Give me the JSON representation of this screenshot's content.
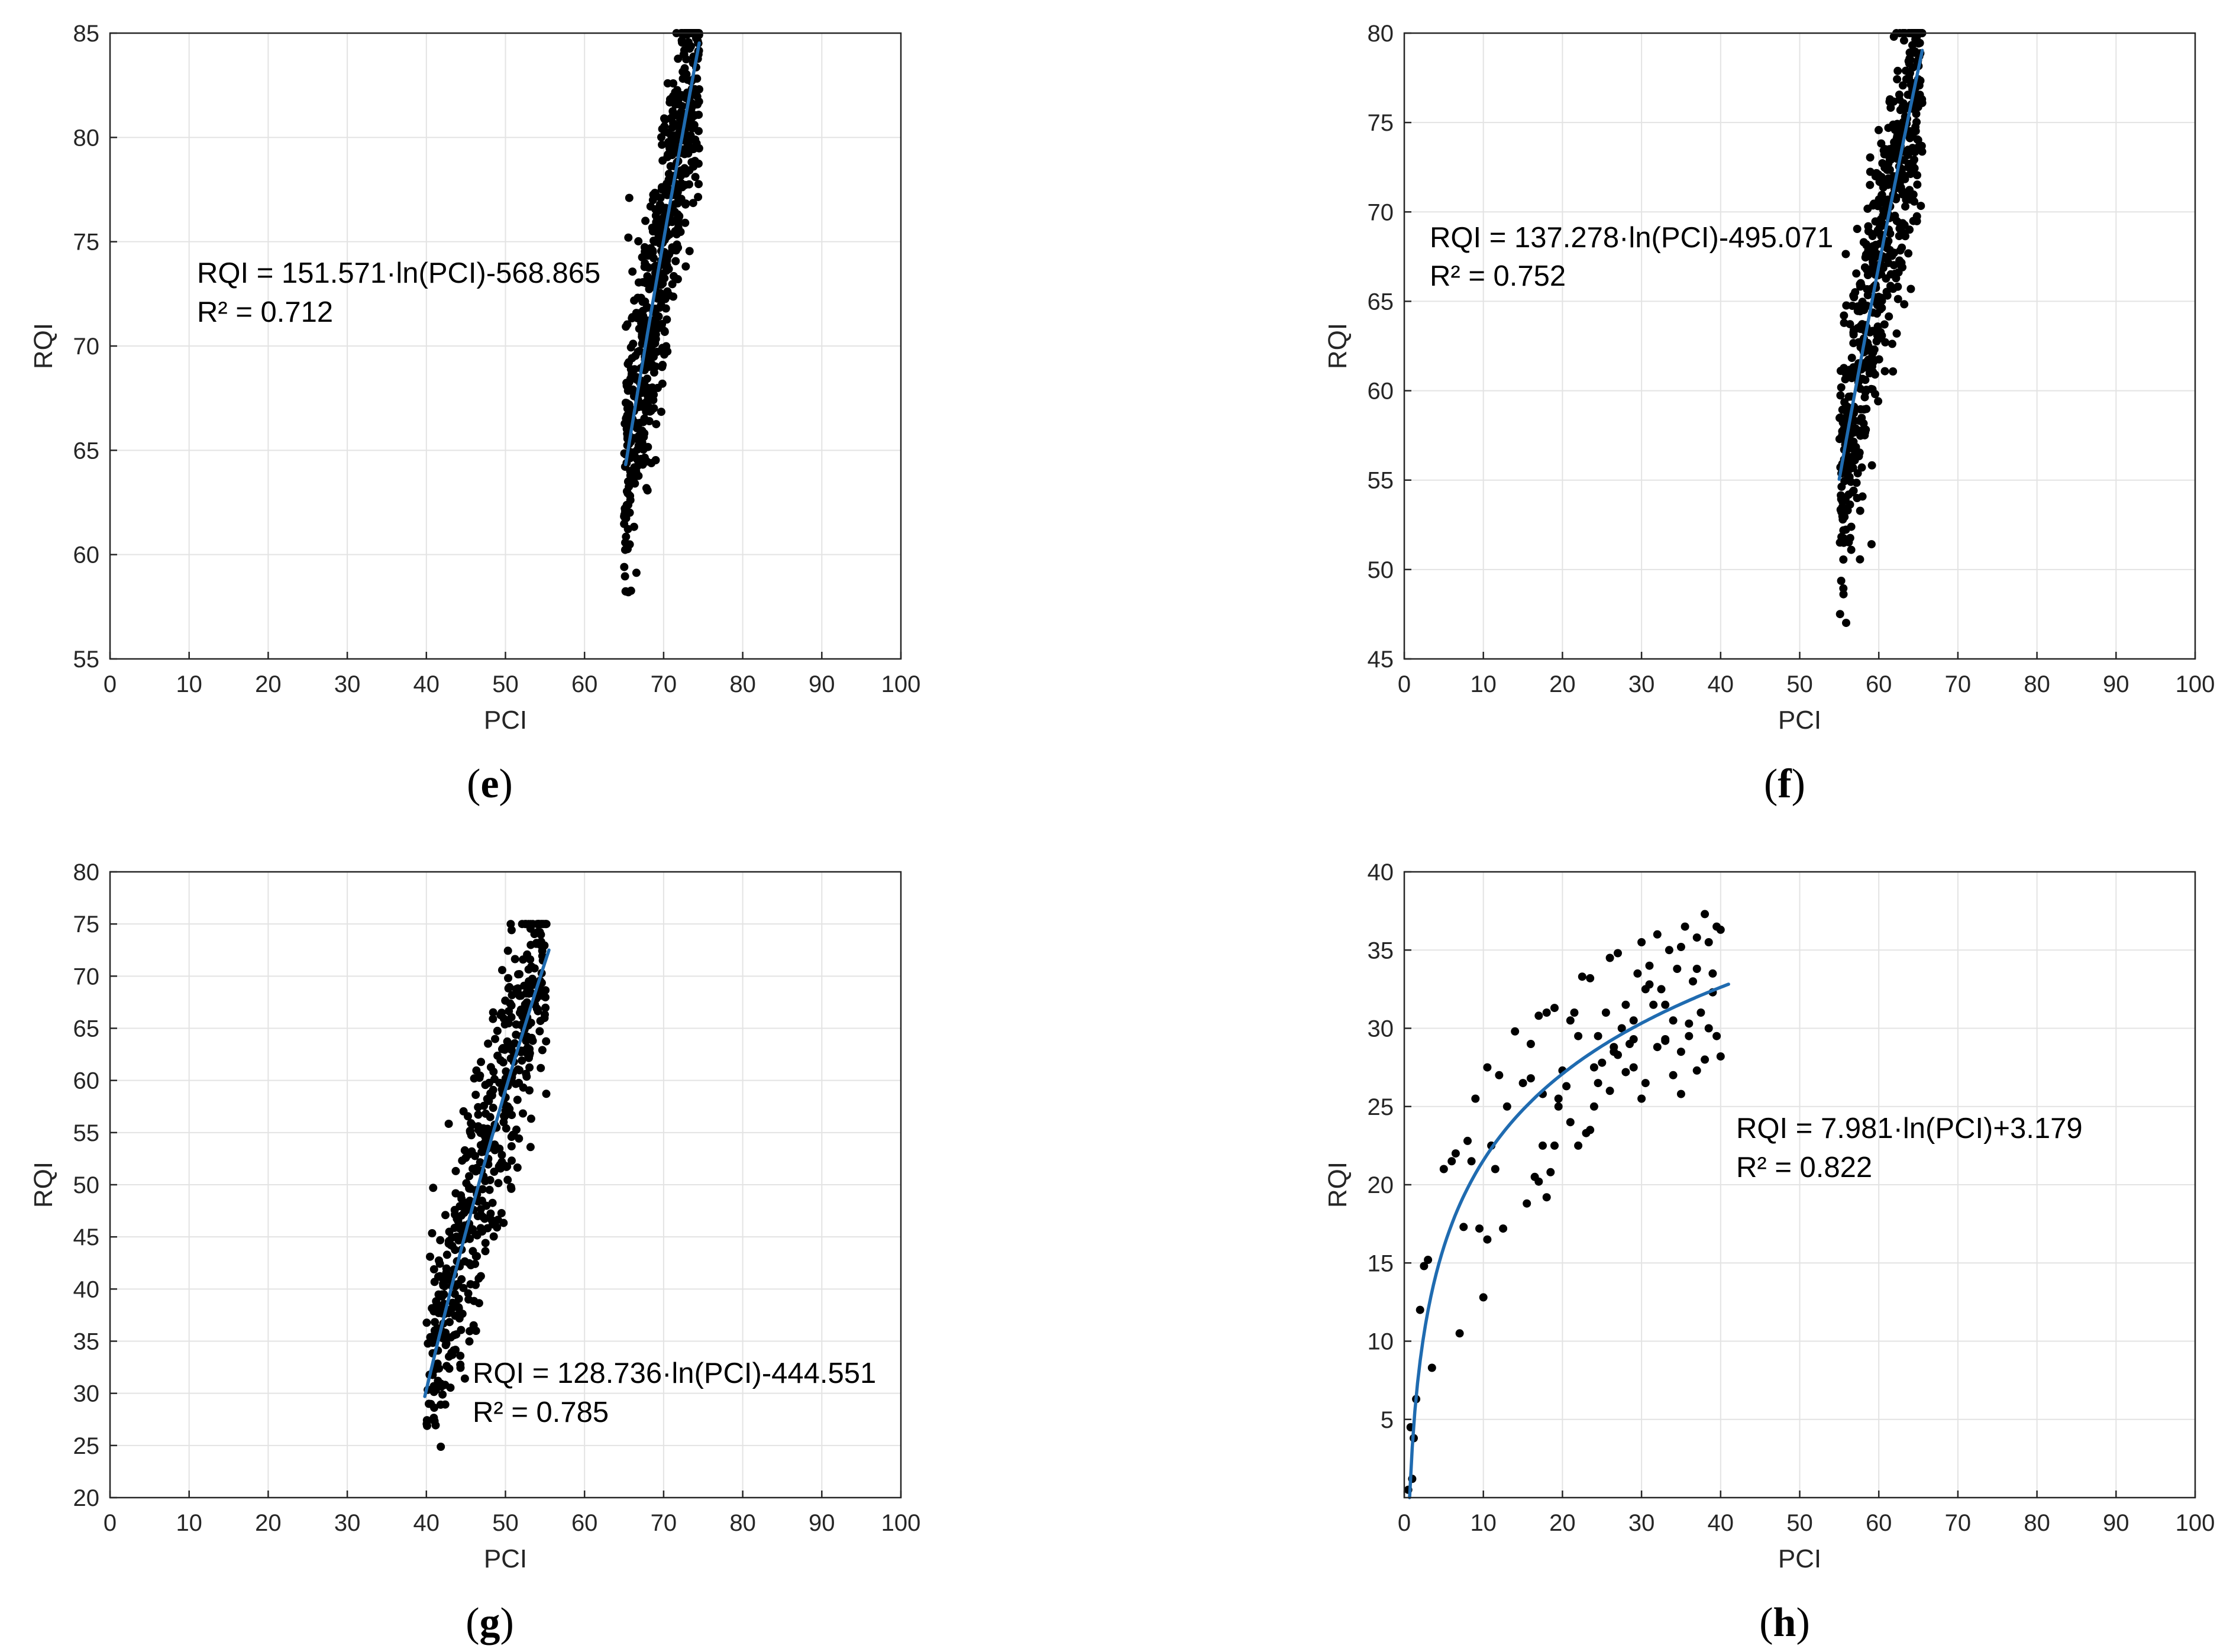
{
  "figure": {
    "domain": "scatter plots with logarithmic fits"
  },
  "chart_data": [
    {
      "id": "e",
      "type": "scatter",
      "panel_label": "e",
      "xlabel": "PCI",
      "ylabel": "RQI",
      "xlim": [
        0,
        100
      ],
      "ylim": [
        55,
        85
      ],
      "xticks": [
        "0",
        "10",
        "20",
        "30",
        "40",
        "50",
        "60",
        "70",
        "80",
        "90",
        "100"
      ],
      "yticks": [
        "55",
        "60",
        "65",
        "70",
        "75",
        "80",
        "85"
      ],
      "grid": true,
      "fit": {
        "model": "a*ln(PCI)+b",
        "a": 151.571,
        "b": -568.865,
        "x_range": [
          65.2,
          74.5
        ]
      },
      "equation": "RQI = 151.571·ln(PCI)-568.865",
      "r2": "R² = 0.712",
      "points": {
        "count": 650,
        "x_range": [
          65.0,
          74.5
        ],
        "noise": 3.3,
        "y_clip": [
          57.4,
          85
        ],
        "seed": 11
      }
    },
    {
      "id": "f",
      "type": "scatter",
      "panel_label": "f",
      "xlabel": "PCI",
      "ylabel": "RQI",
      "xlim": [
        0,
        100
      ],
      "ylim": [
        45,
        80
      ],
      "xticks": [
        "0",
        "10",
        "20",
        "30",
        "40",
        "50",
        "60",
        "70",
        "80",
        "90",
        "100"
      ],
      "yticks": [
        "45",
        "50",
        "55",
        "60",
        "65",
        "70",
        "75",
        "80"
      ],
      "grid": true,
      "fit": {
        "model": "a*ln(PCI)+b",
        "a": 137.278,
        "b": -495.071,
        "x_range": [
          55.0,
          65.5
        ]
      },
      "equation": "RQI = 137.278·ln(PCI)-495.071",
      "r2": "R² = 0.752",
      "points": {
        "count": 600,
        "x_range": [
          55.0,
          65.5
        ],
        "noise": 3.7,
        "y_clip": [
          46.2,
          80
        ],
        "seed": 23
      }
    },
    {
      "id": "g",
      "type": "scatter",
      "panel_label": "g",
      "xlabel": "PCI",
      "ylabel": "RQI",
      "xlim": [
        0,
        100
      ],
      "ylim": [
        20,
        80
      ],
      "xticks": [
        "0",
        "10",
        "20",
        "30",
        "40",
        "50",
        "60",
        "70",
        "80",
        "90",
        "100"
      ],
      "yticks": [
        "20",
        "25",
        "30",
        "35",
        "40",
        "45",
        "50",
        "55",
        "60",
        "65",
        "70",
        "75",
        "80"
      ],
      "grid": true,
      "fit": {
        "model": "a*ln(PCI)+b",
        "a": 128.736,
        "b": -444.551,
        "x_range": [
          39.8,
          55.5
        ]
      },
      "equation": "RQI = 128.736·ln(PCI)-444.551",
      "r2": "R² = 0.785",
      "points": {
        "count": 520,
        "x_range": [
          40.0,
          55.2
        ],
        "noise": 5.5,
        "y_clip": [
          21.5,
          75
        ],
        "seed": 37
      }
    },
    {
      "id": "h",
      "type": "scatter",
      "panel_label": "h",
      "xlabel": "PCI",
      "ylabel": "RQI",
      "xlim": [
        0,
        100
      ],
      "ylim": [
        0,
        40
      ],
      "xticks": [
        "0",
        "10",
        "20",
        "30",
        "40",
        "50",
        "60",
        "70",
        "80",
        "90",
        "100"
      ],
      "yticks": [
        "5",
        "10",
        "15",
        "20",
        "25",
        "30",
        "35",
        "40"
      ],
      "yticks_values": [
        5,
        10,
        15,
        20,
        25,
        30,
        35,
        40
      ],
      "grid": true,
      "fit": {
        "model": "a*ln(PCI)+b",
        "a": 7.981,
        "b": 3.179,
        "x_range": [
          0.67,
          41.0
        ]
      },
      "equation": "RQI = 7.981·ln(PCI)+3.179",
      "r2": "R² = 0.822",
      "points": {
        "x": [
          0.5,
          0.8,
          1.0,
          1.2,
          1.5,
          2.0,
          2.5,
          3.0,
          3.5,
          5.0,
          6.0,
          7.0,
          7.5,
          8.0,
          9.0,
          10.0,
          10.5,
          11.0,
          11.5,
          12.0,
          13.0,
          14.0,
          15.0,
          16.0,
          16.5,
          17.0,
          17.5,
          18.0,
          18.5,
          19.0,
          19.5,
          20.0,
          20.5,
          21.0,
          21.5,
          22.0,
          22.5,
          23.0,
          23.5,
          24.0,
          24.5,
          25.0,
          25.5,
          26.0,
          26.5,
          27.0,
          27.5,
          28.0,
          28.5,
          29.0,
          29.5,
          30.0,
          30.5,
          31.0,
          31.5,
          32.0,
          32.5,
          33.0,
          33.5,
          34.0,
          34.5,
          35.0,
          35.5,
          36.0,
          36.5,
          37.0,
          37.5,
          38.0,
          38.5,
          39.0,
          39.5,
          40.0,
          16.0,
          17.0,
          18.0,
          19.0,
          22.0,
          23.5,
          24.5,
          26.0,
          27.0,
          28.0,
          29.0,
          30.0,
          31.0,
          32.0,
          33.0,
          34.0,
          35.0,
          36.0,
          37.0,
          38.0,
          39.0,
          40.0,
          33.0,
          35.0,
          37.0,
          38.5,
          39.5,
          30.5,
          29.0,
          26.5,
          24.0,
          21.0,
          19.5,
          17.5,
          15.5,
          12.5,
          10.5,
          9.5,
          8.5,
          6.5
        ],
        "y": [
          0.5,
          4.5,
          1.2,
          3.8,
          6.3,
          12.0,
          14.8,
          15.2,
          8.3,
          21.0,
          21.5,
          10.5,
          17.3,
          22.8,
          25.5,
          12.8,
          27.5,
          22.5,
          21.0,
          27.0,
          25.0,
          29.8,
          26.5,
          29.0,
          20.5,
          30.8,
          25.8,
          31.0,
          20.8,
          31.3,
          25.0,
          27.3,
          26.3,
          30.5,
          31.0,
          22.5,
          33.3,
          23.3,
          33.2,
          27.5,
          29.5,
          27.8,
          31.0,
          34.5,
          28.5,
          28.3,
          30.0,
          31.5,
          29.0,
          27.5,
          33.5,
          35.5,
          26.5,
          34.0,
          31.5,
          36.0,
          32.5,
          29.3,
          35.0,
          30.5,
          33.8,
          28.5,
          36.5,
          29.5,
          33.0,
          35.8,
          31.0,
          37.3,
          30.0,
          33.5,
          29.5,
          36.3,
          26.8,
          20.2,
          19.2,
          22.5,
          29.5,
          23.5,
          26.5,
          26.0,
          34.8,
          27.2,
          29.3,
          25.5,
          32.8,
          28.8,
          31.5,
          27.0,
          25.8,
          30.3,
          27.3,
          28.0,
          32.3,
          28.2,
          29.2,
          35.2,
          33.8,
          35.5,
          36.5,
          32.5,
          30.5,
          28.8,
          25.0,
          24.0,
          25.5,
          22.5,
          18.8,
          17.2,
          16.5,
          17.2,
          21.5,
          22.0
        ]
      }
    }
  ]
}
